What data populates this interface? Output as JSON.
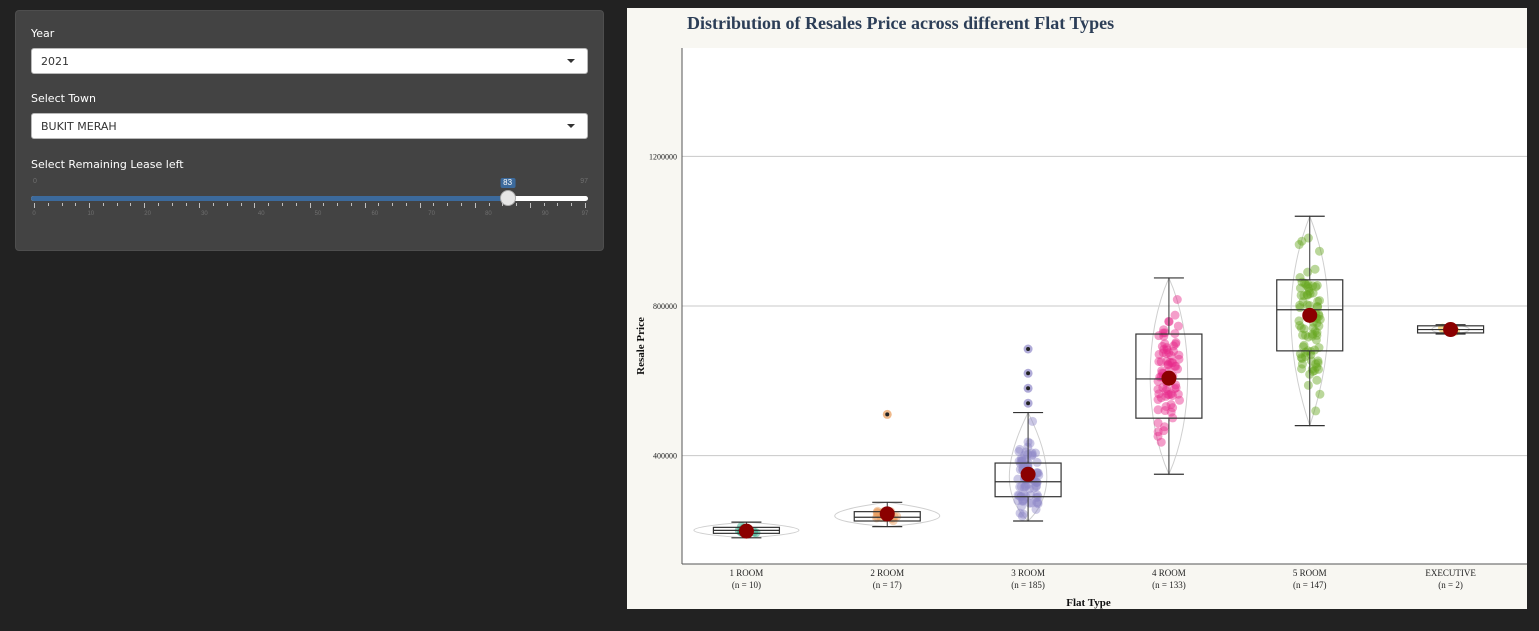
{
  "sidebar": {
    "year_label": "Year",
    "year_value": "2021",
    "town_label": "Select Town",
    "town_value": "BUKIT MERAH",
    "lease_label": "Select Remaining Lease left",
    "lease_min": 0,
    "lease_max": 97,
    "lease_value": 83,
    "lease_min_label": "0",
    "lease_max_label": "97",
    "lease_value_label": "83",
    "lease_ticks": [
      "0",
      "10",
      "20",
      "30",
      "40",
      "50",
      "60",
      "70",
      "80",
      "90",
      "97"
    ]
  },
  "colors": {
    "accent": "#3c6a9c",
    "mean_point": "#8b0000",
    "1_room": "#1b9e77",
    "2_room": "#e89b5a",
    "3_room": "#8f88c7",
    "4_room": "#e7298a",
    "5_room": "#66a61e",
    "executive": "#e6ab02"
  },
  "chart_data": {
    "type": "boxplot",
    "title": "Distribution of Resales Price across different Flat Types",
    "xlabel": "Flat Type",
    "ylabel": "Resale Price",
    "ylim": [
      110000,
      1490000
    ],
    "yticks": [
      400000,
      800000,
      1200000
    ],
    "ytick_labels": [
      "400000",
      "800000",
      "1200000"
    ],
    "grid": "horizontal",
    "categories": [
      {
        "name": "1 ROOM",
        "n_label": "(n = 10)",
        "min": 180000,
        "q1": 192000,
        "median": 200000,
        "q3": 208000,
        "max": 222000,
        "mean": 198000,
        "outliers": []
      },
      {
        "name": "2 ROOM",
        "n_label": "(n = 17)",
        "min": 210000,
        "q1": 225000,
        "median": 235000,
        "q3": 250000,
        "max": 275000,
        "mean": 244000,
        "outliers": [
          510000
        ]
      },
      {
        "name": "3 ROOM",
        "n_label": "(n = 185)",
        "min": 225000,
        "q1": 290000,
        "median": 330000,
        "q3": 380000,
        "max": 515000,
        "mean": 350000,
        "outliers": [
          540000,
          580000,
          620000,
          685000
        ]
      },
      {
        "name": "4 ROOM",
        "n_label": "(n = 133)",
        "min": 350000,
        "q1": 500000,
        "median": 605000,
        "q3": 725000,
        "max": 875000,
        "mean": 607000,
        "outliers": []
      },
      {
        "name": "5 ROOM",
        "n_label": "(n = 147)",
        "min": 480000,
        "q1": 680000,
        "median": 790000,
        "q3": 870000,
        "max": 1040000,
        "mean": 775000,
        "outliers": []
      },
      {
        "name": "EXECUTIVE",
        "n_label": "(n = 2)",
        "min": 725000,
        "q1": 728000,
        "median": 737000,
        "q3": 747000,
        "max": 750000,
        "mean": 737000,
        "outliers": []
      }
    ]
  }
}
